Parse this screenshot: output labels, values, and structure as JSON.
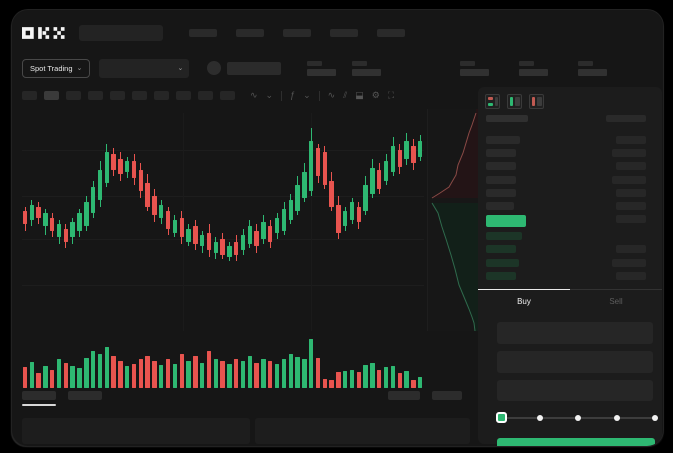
{
  "app": {
    "brand": "OKX"
  },
  "header": {
    "nav_placeholder_count": 5,
    "search_placeholder": ""
  },
  "market_bar": {
    "spot_trading_label": "Spot Trading",
    "chevron": "⌄"
  },
  "toolbar": {
    "timeframe_count": 10,
    "selected_timeframe_index": 1,
    "icons": [
      {
        "name": "indicator-wave-icon",
        "glyph": "∿"
      },
      {
        "name": "chevron-down-icon",
        "glyph": "⌄"
      },
      {
        "name": "divider",
        "glyph": "|"
      },
      {
        "name": "candle-style-icon",
        "glyph": "ƒ"
      },
      {
        "name": "chevron-down-icon",
        "glyph": "⌄"
      },
      {
        "name": "divider",
        "glyph": "|"
      },
      {
        "name": "line-tool-icon",
        "glyph": "∿"
      },
      {
        "name": "compare-icon",
        "glyph": "⫽"
      },
      {
        "name": "camera-icon",
        "glyph": "⬓"
      },
      {
        "name": "settings-gear-icon",
        "glyph": "⚙"
      },
      {
        "name": "fullscreen-icon",
        "glyph": "⛶"
      }
    ]
  },
  "order_book": {
    "view_icons": [
      "book-both-icon",
      "book-buy-icon",
      "book-sell-icon"
    ],
    "ask_row_widths": [
      34,
      30,
      30,
      30,
      30,
      28
    ],
    "bid_row_widths": [
      36,
      30,
      33,
      30
    ],
    "right_upper_row_widths": [
      30,
      34,
      30,
      34,
      30,
      30,
      30
    ],
    "right_lower_row_widths": [
      30,
      34,
      30
    ],
    "ask_row_tops": [
      49,
      62,
      75,
      89,
      102,
      115
    ],
    "bid_row_tops": [
      145,
      158,
      172,
      185
    ],
    "right_upper_tops": [
      49,
      62,
      75,
      89,
      102,
      115,
      128
    ],
    "right_lower_tops": [
      158,
      172,
      185
    ]
  },
  "trade_form": {
    "buy_tab": "Buy",
    "sell_tab": "Sell",
    "field_tops": [
      235,
      264,
      293
    ],
    "slider_stops_pct": [
      0,
      25,
      50,
      75,
      100
    ],
    "slider_active_stop": 0,
    "buy_button_label": ""
  },
  "colors": {
    "green": "#2eb872",
    "red": "#e8544f",
    "bid_row_green": "#1c3527",
    "ask_row_gray": "#2a2a2a",
    "right_row_gray": "#272727",
    "depth_ask_line": "#8a4a46",
    "depth_ask_fill": "#231416",
    "depth_bid_line": "#2f6b4d",
    "depth_bid_fill": "#122019"
  },
  "chart_data": {
    "type": "bar",
    "subtype": "candlestick-with-volume",
    "title": "",
    "xlabel": "",
    "ylabel": "",
    "grid": "faint-horizontal",
    "note": "values are percent of pane height from top: [wickTop, bodyTop, bodyBottom, wickBottom, up(1)/down(0)]",
    "candles": [
      [
        43,
        45,
        51,
        54,
        0
      ],
      [
        40,
        42,
        49,
        52,
        1
      ],
      [
        41,
        43,
        48,
        51,
        0
      ],
      [
        44,
        46,
        52,
        56,
        1
      ],
      [
        46,
        48,
        54,
        57,
        0
      ],
      [
        49,
        51,
        57,
        60,
        1
      ],
      [
        51,
        53,
        59,
        62,
        0
      ],
      [
        48,
        50,
        57,
        60,
        1
      ],
      [
        44,
        46,
        54,
        57,
        1
      ],
      [
        38,
        41,
        52,
        54,
        1
      ],
      [
        31,
        34,
        46,
        48,
        1
      ],
      [
        22,
        26,
        40,
        43,
        1
      ],
      [
        14,
        18,
        32,
        34,
        1
      ],
      [
        16,
        19,
        26,
        29,
        0
      ],
      [
        18,
        21,
        28,
        31,
        0
      ],
      [
        20,
        22,
        27,
        30,
        1
      ],
      [
        19,
        22,
        30,
        33,
        0
      ],
      [
        23,
        26,
        36,
        39,
        0
      ],
      [
        28,
        32,
        43,
        45,
        0
      ],
      [
        35,
        38,
        47,
        50,
        0
      ],
      [
        40,
        42,
        48,
        51,
        1
      ],
      [
        43,
        45,
        53,
        56,
        0
      ],
      [
        47,
        49,
        55,
        57,
        1
      ],
      [
        45,
        48,
        57,
        60,
        0
      ],
      [
        51,
        53,
        59,
        61,
        1
      ],
      [
        49,
        52,
        60,
        63,
        0
      ],
      [
        54,
        56,
        61,
        64,
        1
      ],
      [
        51,
        55,
        63,
        66,
        0
      ],
      [
        57,
        59,
        64,
        67,
        1
      ],
      [
        55,
        58,
        65,
        67,
        0
      ],
      [
        59,
        61,
        66,
        68,
        1
      ],
      [
        56,
        59,
        65,
        68,
        0
      ],
      [
        53,
        56,
        63,
        65,
        1
      ],
      [
        49,
        52,
        60,
        62,
        1
      ],
      [
        51,
        54,
        61,
        64,
        0
      ],
      [
        47,
        50,
        58,
        60,
        1
      ],
      [
        49,
        52,
        59,
        62,
        0
      ],
      [
        46,
        48,
        55,
        58,
        1
      ],
      [
        41,
        44,
        54,
        56,
        1
      ],
      [
        37,
        40,
        49,
        51,
        1
      ],
      [
        29,
        33,
        45,
        47,
        1
      ],
      [
        23,
        27,
        39,
        41,
        1
      ],
      [
        7,
        13,
        36,
        38,
        1
      ],
      [
        14,
        16,
        29,
        32,
        0
      ],
      [
        15,
        18,
        33,
        35,
        0
      ],
      [
        27,
        31,
        43,
        45,
        0
      ],
      [
        38,
        42,
        55,
        58,
        0
      ],
      [
        43,
        45,
        52,
        54,
        1
      ],
      [
        39,
        41,
        49,
        51,
        1
      ],
      [
        41,
        43,
        50,
        53,
        0
      ],
      [
        29,
        33,
        45,
        47,
        1
      ],
      [
        21,
        25,
        37,
        39,
        1
      ],
      [
        23,
        26,
        35,
        37,
        0
      ],
      [
        19,
        22,
        31,
        33,
        1
      ],
      [
        11,
        15,
        27,
        29,
        1
      ],
      [
        14,
        17,
        25,
        28,
        0
      ],
      [
        9,
        13,
        21,
        24,
        1
      ],
      [
        12,
        15,
        23,
        26,
        0
      ],
      [
        10,
        13,
        20,
        22,
        1
      ]
    ],
    "volume_pct": [
      [
        40,
        0
      ],
      [
        50,
        1
      ],
      [
        28,
        0
      ],
      [
        42,
        1
      ],
      [
        35,
        0
      ],
      [
        55,
        1
      ],
      [
        48,
        0
      ],
      [
        42,
        1
      ],
      [
        38,
        1
      ],
      [
        58,
        1
      ],
      [
        72,
        1
      ],
      [
        66,
        1
      ],
      [
        78,
        1
      ],
      [
        62,
        0
      ],
      [
        52,
        0
      ],
      [
        42,
        1
      ],
      [
        46,
        0
      ],
      [
        56,
        0
      ],
      [
        62,
        0
      ],
      [
        52,
        0
      ],
      [
        44,
        1
      ],
      [
        56,
        0
      ],
      [
        46,
        1
      ],
      [
        66,
        0
      ],
      [
        52,
        1
      ],
      [
        62,
        0
      ],
      [
        48,
        1
      ],
      [
        72,
        0
      ],
      [
        56,
        1
      ],
      [
        52,
        0
      ],
      [
        46,
        1
      ],
      [
        56,
        0
      ],
      [
        52,
        1
      ],
      [
        62,
        1
      ],
      [
        48,
        0
      ],
      [
        56,
        1
      ],
      [
        52,
        0
      ],
      [
        46,
        1
      ],
      [
        56,
        1
      ],
      [
        66,
        1
      ],
      [
        60,
        1
      ],
      [
        55,
        1
      ],
      [
        95,
        1
      ],
      [
        58,
        0
      ],
      [
        18,
        0
      ],
      [
        15,
        0
      ],
      [
        30,
        0
      ],
      [
        32,
        1
      ],
      [
        35,
        1
      ],
      [
        30,
        0
      ],
      [
        45,
        1
      ],
      [
        48,
        1
      ],
      [
        35,
        0
      ],
      [
        40,
        1
      ],
      [
        42,
        1
      ],
      [
        28,
        0
      ],
      [
        32,
        1
      ],
      [
        15,
        0
      ],
      [
        22,
        1
      ]
    ],
    "depth": {
      "ask_line": [
        [
          48,
          4
        ],
        [
          44,
          16
        ],
        [
          41,
          24
        ],
        [
          38,
          34
        ],
        [
          35,
          44
        ],
        [
          30,
          56
        ],
        [
          28,
          66
        ],
        [
          21,
          78
        ],
        [
          12,
          84
        ],
        [
          4,
          89
        ]
      ],
      "bid_line": [
        [
          4,
          94
        ],
        [
          10,
          104
        ],
        [
          14,
          118
        ],
        [
          18,
          130
        ],
        [
          23,
          146
        ],
        [
          27,
          160
        ],
        [
          31,
          176
        ],
        [
          36,
          188
        ],
        [
          41,
          200
        ],
        [
          44,
          208
        ],
        [
          46,
          214
        ],
        [
          47,
          222
        ]
      ],
      "panel_size": [
        52,
        222
      ]
    },
    "gridline_tops_pct": [
      17,
      38,
      58,
      79
    ],
    "gridline_lefts_pct": [
      40,
      72
    ]
  }
}
